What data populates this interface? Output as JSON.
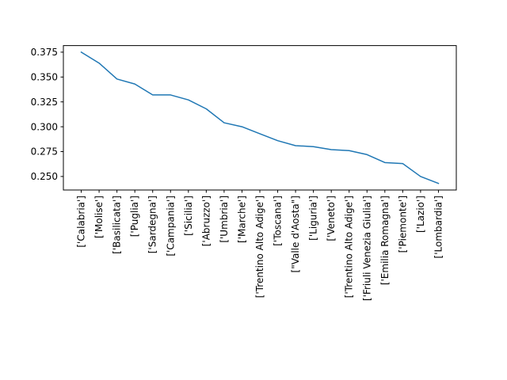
{
  "chart_data": {
    "type": "line",
    "title": "",
    "xlabel": "",
    "ylabel": "",
    "categories": [
      "['Calabria']",
      "['Molise']",
      "['Basilicata']",
      "['Puglia']",
      "['Sardegna']",
      "['Campania']",
      "['Sicilia']",
      "['Abruzzo']",
      "['Umbria']",
      "['Marche']",
      "['Trentino Alto Adige']",
      "['Toscana']",
      "[\"Valle d'Aosta\"]",
      "['Liguria']",
      "['Veneto']",
      "['Trentino Alto Adige']",
      "['Friuli Venezia Giulia']",
      "['Emilia Romagna']",
      "['Piemonte']",
      "['Lazio']",
      "['Lombardia']"
    ],
    "series": [
      {
        "values": [
          0.375,
          0.364,
          0.348,
          0.343,
          0.332,
          0.332,
          0.327,
          0.318,
          0.304,
          0.3,
          0.293,
          0.286,
          0.281,
          0.28,
          0.277,
          0.276,
          0.272,
          0.264,
          0.263,
          0.25,
          0.243
        ],
        "color": "#1f77b4"
      }
    ],
    "y_ticks": [
      "0.250",
      "0.275",
      "0.300",
      "0.325",
      "0.350",
      "0.375"
    ],
    "ylim": [
      0.2364,
      0.3816
    ],
    "grid": false,
    "legend": "none"
  }
}
